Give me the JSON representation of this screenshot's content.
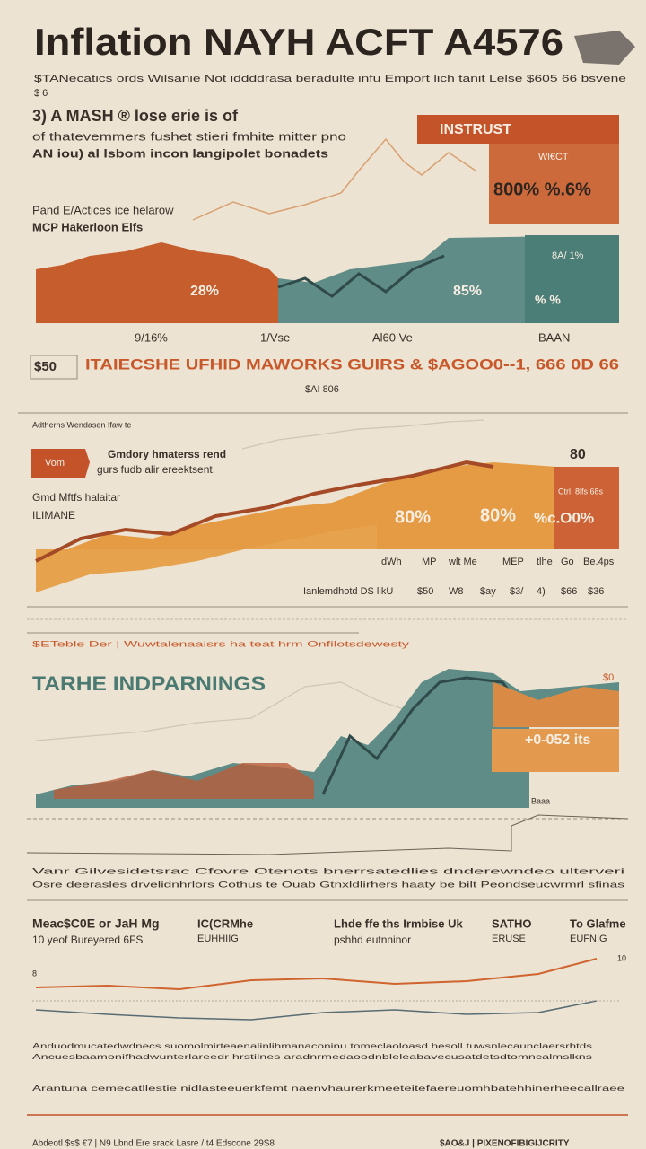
{
  "header": {
    "title": "Inflation NAYH ACFT A4576",
    "subtitle": "$TANecatics ords Wilsanie Not iddddrasa beradulte infu Emport lich tanit Lelse $605 66 bsvene",
    "tag": "$ 6"
  },
  "section1": {
    "heading": "3) A MASH ® lose erie is of",
    "lines": [
      "of thatevemmers fushet stieri fmhite mitter pno",
      "AN iou) al lsbom incon langipolet bonadets"
    ],
    "box_title": "INSTRUST",
    "box_sub": "Wl€CT",
    "box_value": "800% %.6%",
    "left_labels": [
      "Pand E/Actices ice helarow",
      "MCP Hakerloon Elfs"
    ],
    "chart_labels": [
      "28%",
      "85%",
      "% %",
      "8A/ 1%"
    ],
    "axis_labels": [
      "9/16%",
      "1/Vse",
      "Al60 Ve",
      "BAAN"
    ],
    "side": "$50",
    "banner": "ITAIECSHE UFHID MAWORKS GUIRS & $AGOO0--1, 666 0D 66",
    "banner_sub": "$AI 806"
  },
  "section2": {
    "note": "Adtherns Wendasen Ifaw te",
    "tag": "Vom",
    "heading": [
      "Gmdory hmaterss rend",
      "gurs fudb alir ereektsent."
    ],
    "left_labels": [
      "Gmd Mftfs halaitar",
      "ILIMANE"
    ],
    "value": "80",
    "box_text": "Ctrl. 8lfs 68s",
    "chart_labels": [
      "80%",
      "80%",
      "%c.O0%"
    ],
    "axis_top": [
      "dWh",
      "MP",
      "wlt Me",
      "MEP",
      "tlhe",
      "Go",
      "Be.4ps"
    ],
    "axis_bottom": [
      "Ianlemdhotd DS likU",
      "$50",
      "W8",
      "$ay",
      "$3/",
      "4)",
      "$66",
      "$36"
    ]
  },
  "section3": {
    "note": "$ETeble Der | Wuwtalenaaisrs ha teat hrm Onfilotsdewesty",
    "heading": "TARHE INDPARNINGS",
    "value": "+0-052 its",
    "corner": "$0",
    "marker": "Baaa"
  },
  "bottom": {
    "lines": [
      "Vanr Gilvesidetsrac Cfovre Otenots bnerrsatedlies dnderewndeo ulterveri",
      "Osre deerasles drvelidnhrlors Cothus te Ouab Gtnxldlirhers haaty be bilt Peondseucwrmrl sfinas"
    ],
    "columns": [
      [
        "Meac$C0E or JaH Mg",
        "10 yeof Bureyered 6FS"
      ],
      [
        "IC(CRMhe",
        "EUHHIIG"
      ],
      [
        "Lhde ffe ths Irmbise Uk",
        "pshhd eutnninor"
      ],
      [
        "SATHO",
        "ERUSE"
      ],
      [
        "To Glafme",
        "EUFNIG"
      ]
    ],
    "chart_top": "10",
    "chart_left": "8",
    "paragraph": [
      "Anduodmucatedwdnecs suomolmirteaenalinlihmanaconinu tomeclaoloasd hesoll tuwsnlecaunclaersrhtds",
      "Ancuesbaamonifhadwunterlareedr hrstilnes aradnrmedaoodnbleleabavecusatdetsdtomncalmslkns",
      "Arantuna cemecatllestie nidlasteeuerkfemt naenvhaurerkmeeteitefaereuomhbatehhinerheecallraee"
    ],
    "footer": "Abdeotl $s$ €7 | N9 Lbnd Ere srack Lasre / t4 Edscone 29S8",
    "footer_right": "$AO&J | PIXENOFIBIGIJCRITY"
  }
}
